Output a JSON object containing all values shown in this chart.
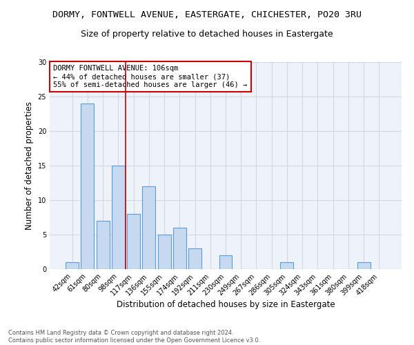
{
  "title": "DORMY, FONTWELL AVENUE, EASTERGATE, CHICHESTER, PO20 3RU",
  "subtitle": "Size of property relative to detached houses in Eastergate",
  "xlabel": "Distribution of detached houses by size in Eastergate",
  "ylabel": "Number of detached properties",
  "bar_labels": [
    "42sqm",
    "61sqm",
    "80sqm",
    "98sqm",
    "117sqm",
    "136sqm",
    "155sqm",
    "174sqm",
    "192sqm",
    "211sqm",
    "230sqm",
    "249sqm",
    "267sqm",
    "286sqm",
    "305sqm",
    "324sqm",
    "343sqm",
    "361sqm",
    "380sqm",
    "399sqm",
    "418sqm"
  ],
  "bar_values": [
    1,
    24,
    7,
    15,
    8,
    12,
    5,
    6,
    3,
    0,
    2,
    0,
    0,
    0,
    1,
    0,
    0,
    0,
    0,
    1,
    0
  ],
  "bar_color": "#c6d9f0",
  "bar_edge_color": "#5b9bd5",
  "grid_color": "#d0d8e8",
  "background_color": "#eef2f9",
  "vline_x": 3.5,
  "vline_color": "#cc0000",
  "annotation_text": "DORMY FONTWELL AVENUE: 106sqm\n← 44% of detached houses are smaller (37)\n55% of semi-detached houses are larger (46) →",
  "annotation_box_color": "white",
  "annotation_box_edge": "#cc0000",
  "ylim": [
    0,
    30
  ],
  "yticks": [
    0,
    5,
    10,
    15,
    20,
    25,
    30
  ],
  "footnote": "Contains HM Land Registry data © Crown copyright and database right 2024.\nContains public sector information licensed under the Open Government Licence v3.0.",
  "title_fontsize": 9.5,
  "subtitle_fontsize": 9,
  "ylabel_fontsize": 8.5,
  "xlabel_fontsize": 8.5,
  "tick_fontsize": 7,
  "annotation_fontsize": 7.5,
  "footnote_fontsize": 6.0
}
